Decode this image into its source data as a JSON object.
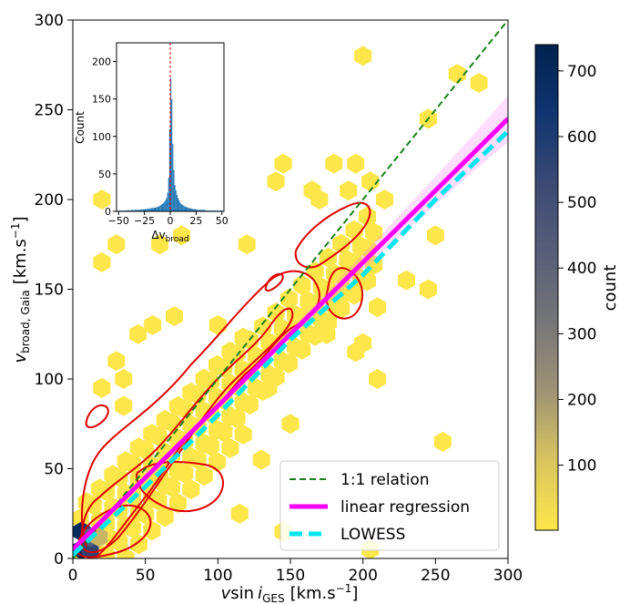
{
  "chart_data": [
    {
      "type": "hexbin",
      "xlabel_main": "v",
      "xlabel_sin": "sin",
      "xlabel_i": "i",
      "xlabel_sub": "GES",
      "xlabel_unit": "[km.s",
      "xlabel_exp": "−1",
      "xlabel_close": "]",
      "ylabel_main": "v",
      "ylabel_sub": "broad, Gaia",
      "ylabel_unit": "[km.s",
      "ylabel_exp": "−1",
      "ylabel_close": "]",
      "xlim": [
        0,
        300
      ],
      "ylim": [
        0,
        300
      ],
      "xticks": [
        "0",
        "50",
        "100",
        "150",
        "200",
        "250",
        "300"
      ],
      "yticks": [
        "0",
        "50",
        "100",
        "150",
        "200",
        "250",
        "300"
      ],
      "colorbar": {
        "label": "count",
        "range": [
          1,
          740
        ],
        "ticks": [
          "100",
          "200",
          "300",
          "400",
          "500",
          "600",
          "700"
        ],
        "colors": [
          "#fde64a",
          "#d9c55f",
          "#9f9375",
          "#767678",
          "#575e78",
          "#3b4a74",
          "#103570",
          "#00224e"
        ]
      },
      "legend": {
        "position": "lower-right",
        "entries": [
          "1:1 relation",
          "linear regression",
          "LOWESS"
        ]
      },
      "series": [
        {
          "name": "1:1 relation",
          "style": "dashed",
          "color": "#1a7f1a",
          "x": [
            0,
            300
          ],
          "y": [
            0,
            300
          ]
        },
        {
          "name": "linear regression",
          "style": "solid",
          "color": "#ff00ff",
          "x": [
            0,
            300
          ],
          "y": [
            5,
            245
          ]
        },
        {
          "name": "LOWESS",
          "style": "dashed",
          "color": "#00e5ee",
          "x": [
            0,
            50,
            100,
            150,
            200,
            250,
            300
          ],
          "y": [
            2,
            40,
            80,
            122,
            158,
            200,
            238
          ]
        }
      ],
      "dense_cells": [
        {
          "x": 6,
          "y": 5,
          "count": 740
        },
        {
          "x": 12,
          "y": 5,
          "count": 560
        },
        {
          "x": 6,
          "y": 15,
          "count": 690
        },
        {
          "x": 12,
          "y": 12,
          "count": 420
        },
        {
          "x": 18,
          "y": 12,
          "count": 140
        }
      ],
      "outlier_cells": [
        [
          200,
          280
        ],
        [
          265,
          270
        ],
        [
          280,
          265
        ],
        [
          245,
          245
        ],
        [
          190,
          205
        ],
        [
          205,
          210
        ],
        [
          215,
          200
        ],
        [
          180,
          220
        ],
        [
          195,
          220
        ],
        [
          30,
          175
        ],
        [
          20,
          200
        ],
        [
          60,
          175
        ],
        [
          75,
          180
        ],
        [
          120,
          175
        ],
        [
          170,
          200
        ],
        [
          145,
          220
        ],
        [
          140,
          210
        ],
        [
          20,
          165
        ],
        [
          70,
          135
        ],
        [
          100,
          130
        ],
        [
          55,
          130
        ],
        [
          45,
          125
        ],
        [
          30,
          110
        ],
        [
          20,
          95
        ],
        [
          35,
          100
        ],
        [
          35,
          85
        ],
        [
          175,
          125
        ],
        [
          210,
          100
        ],
        [
          210,
          140
        ],
        [
          245,
          150
        ],
        [
          200,
          120
        ],
        [
          195,
          115
        ],
        [
          255,
          65
        ],
        [
          115,
          25
        ],
        [
          145,
          15
        ],
        [
          205,
          5
        ],
        [
          60,
          45
        ],
        [
          135,
          95
        ],
        [
          150,
          75
        ],
        [
          130,
          55
        ],
        [
          250,
          180
        ],
        [
          230,
          155
        ],
        [
          165,
          205
        ],
        [
          180,
          145
        ]
      ]
    },
    {
      "type": "histogram",
      "xlabel_main": "Δv",
      "xlabel_sub": "broad",
      "ylabel": "Count",
      "xlim": [
        -52,
        52
      ],
      "ylim": [
        0,
        225
      ],
      "xticks": [
        "−50",
        "−25",
        "0",
        "25",
        "50"
      ],
      "xtick_values": [
        -50,
        -25,
        0,
        25,
        50
      ],
      "yticks": [
        "0",
        "50",
        "100",
        "150",
        "200"
      ],
      "ytick_values": [
        0,
        50,
        100,
        150,
        200
      ],
      "bar_color": "#1f77b4",
      "bin_width": 1,
      "bins_start": -50,
      "counts": [
        1,
        1,
        1,
        1,
        1,
        1,
        1,
        1,
        1,
        2,
        1,
        1,
        2,
        2,
        1,
        2,
        2,
        2,
        2,
        2,
        2,
        2,
        3,
        2,
        3,
        3,
        3,
        3,
        4,
        3,
        4,
        4,
        5,
        4,
        5,
        5,
        5,
        6,
        6,
        7,
        8,
        9,
        10,
        11,
        13,
        15,
        18,
        25,
        45,
        110,
        178,
        150,
        90,
        55,
        35,
        28,
        22,
        18,
        15,
        12,
        10,
        9,
        8,
        7,
        6,
        6,
        5,
        5,
        4,
        4,
        4,
        3,
        3,
        3,
        3,
        2,
        2,
        2,
        2,
        2,
        2,
        2,
        2,
        2,
        1,
        1,
        1,
        1,
        1,
        1,
        1,
        1,
        1,
        1,
        1,
        1,
        1,
        1,
        1,
        1
      ],
      "zero_line_color": "#ff0000"
    }
  ]
}
